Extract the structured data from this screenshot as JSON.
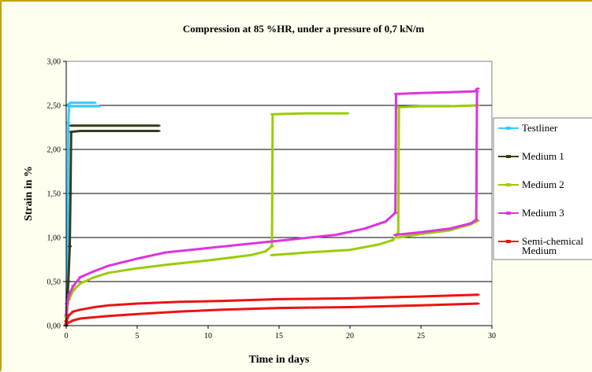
{
  "chart_data": {
    "type": "line",
    "title": "Compression at 85 %HR, under a pressure of 0,7 kN/m",
    "xlabel": "Time in days",
    "ylabel": "Strain in %",
    "xlim": [
      0,
      30
    ],
    "ylim": [
      0,
      3
    ],
    "x_ticks": [
      "0",
      "5",
      "10",
      "15",
      "20",
      "25",
      "30"
    ],
    "y_ticks": [
      "0,00",
      "0,50",
      "1,00",
      "1,50",
      "2,00",
      "2,50",
      "3,00"
    ],
    "grid": "horizontal major gridlines",
    "legend_position": "right",
    "series": [
      {
        "name": "Testliner",
        "color": "#33ccff",
        "marker": "dash",
        "lines": [
          {
            "x": [
              0.0,
              0.1,
              0.15,
              0.2,
              1.0,
              2.0,
              2.3
            ],
            "y": [
              0.0,
              1.0,
              2.3,
              2.49,
              2.49,
              2.49,
              2.49
            ]
          },
          {
            "x": [
              0.15,
              0.3,
              1.0,
              2.0,
              2.0
            ],
            "y": [
              2.51,
              2.53,
              2.53,
              2.53,
              2.53
            ]
          }
        ]
      },
      {
        "name": "Medium 1",
        "color": "#3a3a1a",
        "marker": "dash",
        "lines": [
          {
            "x": [
              0.0,
              0.15,
              0.25,
              0.3,
              0.35,
              1.0,
              3.0,
              6.5
            ],
            "y": [
              0.0,
              0.5,
              0.9,
              1.5,
              2.2,
              2.21,
              2.21,
              2.21
            ]
          },
          {
            "x": [
              0.35,
              1.0,
              3.0,
              6.5
            ],
            "y": [
              2.27,
              2.27,
              2.27,
              2.27
            ]
          }
        ]
      },
      {
        "name": "Medium 2",
        "color": "#99cc00",
        "marker": "dash",
        "lines": [
          {
            "x": [
              0.0,
              0.05,
              0.2,
              0.5,
              1.0,
              2.0,
              3.0,
              5.0,
              7.0,
              10.0,
              13.0,
              14.0,
              14.5
            ],
            "y": [
              0.1,
              0.2,
              0.3,
              0.4,
              0.48,
              0.55,
              0.6,
              0.65,
              0.69,
              0.74,
              0.8,
              0.84,
              0.9
            ]
          },
          {
            "x": [
              14.5,
              14.55
            ],
            "y": [
              0.9,
              2.4
            ]
          },
          {
            "x": [
              14.55,
              17.0,
              19.8
            ],
            "y": [
              2.4,
              2.41,
              2.41
            ]
          },
          {
            "x": [
              14.5,
              17.0,
              20.0,
              22.0,
              23.0,
              23.4
            ],
            "y": [
              0.8,
              0.83,
              0.86,
              0.92,
              0.97,
              1.04
            ]
          },
          {
            "x": [
              23.4,
              23.45
            ],
            "y": [
              1.04,
              2.48
            ]
          },
          {
            "x": [
              23.45,
              25.0,
              27.0,
              29.0
            ],
            "y": [
              2.48,
              2.49,
              2.49,
              2.5
            ]
          },
          {
            "x": [
              23.4,
              25.0,
              27.0,
              28.5,
              29.0
            ],
            "y": [
              1.0,
              1.04,
              1.08,
              1.15,
              1.19
            ]
          }
        ]
      },
      {
        "name": "Medium 3",
        "color": "#dd33dd",
        "marker": "dash",
        "lines": [
          {
            "x": [
              0.0,
              0.05,
              0.2,
              0.5,
              1.0,
              2.0,
              3.0,
              5.0,
              7.0,
              10.0,
              13.0,
              16.0,
              19.0,
              21.0,
              22.5,
              23.2
            ],
            "y": [
              0.12,
              0.25,
              0.35,
              0.45,
              0.55,
              0.62,
              0.68,
              0.76,
              0.83,
              0.88,
              0.93,
              0.98,
              1.03,
              1.1,
              1.18,
              1.28
            ]
          },
          {
            "x": [
              23.2,
              23.25
            ],
            "y": [
              1.28,
              2.63
            ]
          },
          {
            "x": [
              23.25,
              25.0,
              27.0,
              28.8,
              29.0
            ],
            "y": [
              2.63,
              2.64,
              2.65,
              2.66,
              2.69
            ]
          },
          {
            "x": [
              23.2,
              25.0,
              27.0,
              28.5,
              28.9
            ],
            "y": [
              1.03,
              1.06,
              1.1,
              1.16,
              1.2
            ]
          },
          {
            "x": [
              28.9,
              28.95
            ],
            "y": [
              1.2,
              2.66
            ]
          }
        ]
      },
      {
        "name": "Semi-chemical Medium",
        "color": "#ee1111",
        "marker": "dash",
        "lines": [
          {
            "x": [
              0.0,
              0.2,
              0.5,
              1.0,
              2.0,
              3.0,
              5.0,
              8.0,
              11.0,
              15.0,
              20.0,
              25.0,
              29.0
            ],
            "y": [
              0.05,
              0.12,
              0.16,
              0.18,
              0.21,
              0.23,
              0.25,
              0.27,
              0.28,
              0.3,
              0.31,
              0.33,
              0.35
            ]
          },
          {
            "x": [
              0.0,
              0.5,
              1.0,
              3.0,
              5.0,
              8.0,
              11.0,
              15.0,
              20.0,
              25.0,
              29.0
            ],
            "y": [
              0.02,
              0.06,
              0.08,
              0.11,
              0.13,
              0.16,
              0.18,
              0.2,
              0.21,
              0.23,
              0.25
            ]
          }
        ]
      }
    ]
  }
}
